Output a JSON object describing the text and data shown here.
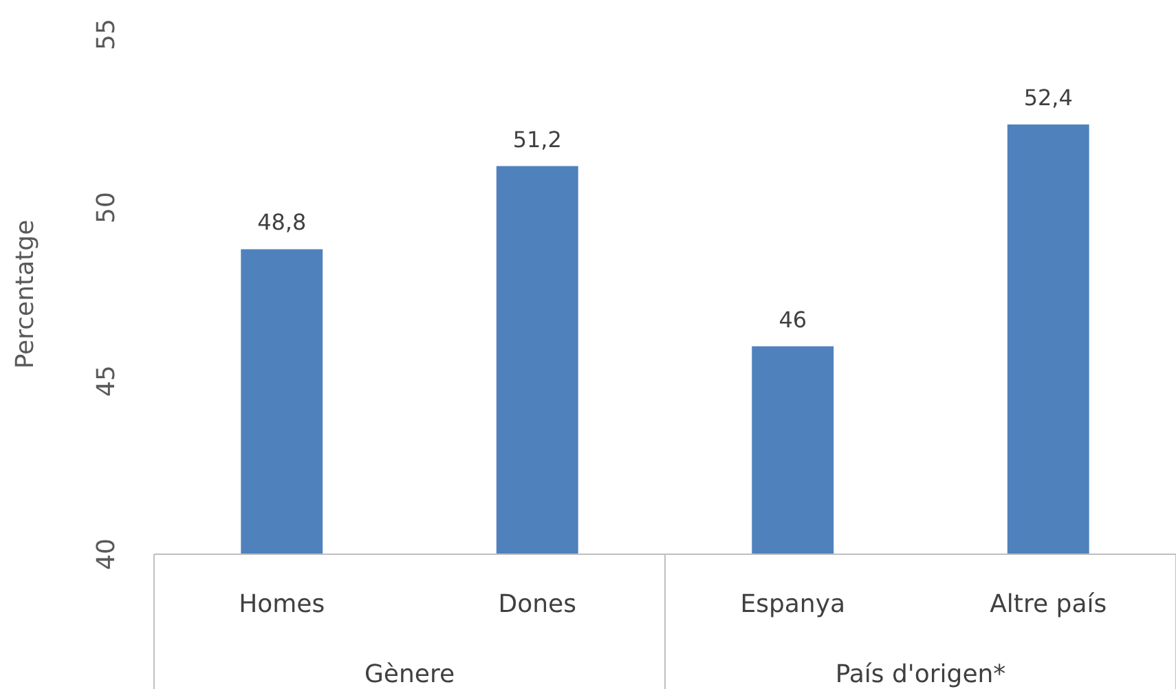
{
  "chart_data": {
    "type": "bar",
    "ylabel": "Percentatge",
    "categories": [
      "Homes",
      "Dones",
      "Espanya",
      "Altre país"
    ],
    "values": [
      48.8,
      51.2,
      46,
      52.4
    ],
    "color": "#4f81bd",
    "value_labels": [
      "48,8",
      "51,2",
      "46",
      "52,4"
    ],
    "ylim": [
      40,
      55
    ],
    "yticks": [
      40,
      45,
      50,
      55
    ],
    "annotations": [
      "Gènere",
      "País d'origen*"
    ]
  }
}
